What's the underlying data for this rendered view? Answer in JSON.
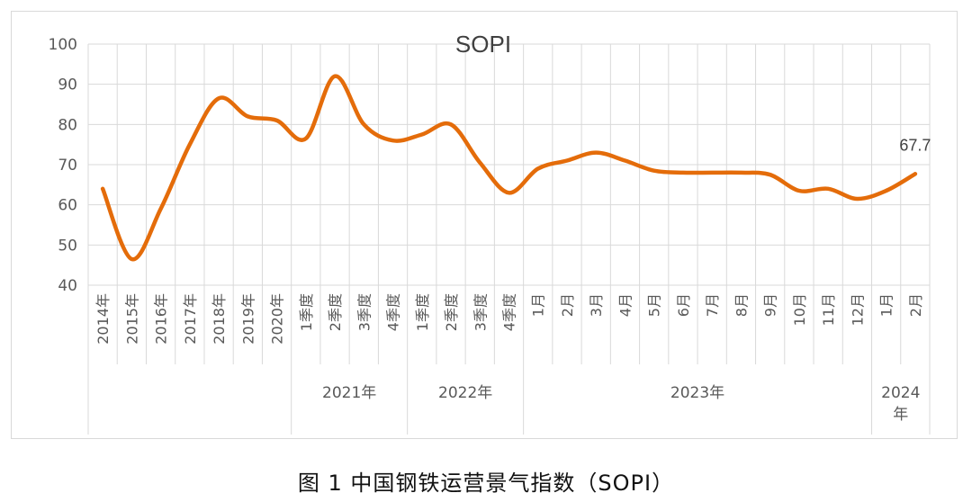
{
  "caption": "图 1   中国钢铁运营景气指数（SOPI）",
  "chart_data": {
    "type": "line",
    "title": "SOPI",
    "ylim": [
      40,
      100
    ],
    "yticks": [
      40,
      50,
      60,
      70,
      80,
      90,
      100
    ],
    "grid": true,
    "line_color": "#E46C0A",
    "categories": [
      "2014年",
      "2015年",
      "2016年",
      "2017年",
      "2018年",
      "2019年",
      "2020年",
      "1季度",
      "2季度",
      "3季度",
      "4季度",
      "1季度",
      "2季度",
      "3季度",
      "4季度",
      "1月",
      "2月",
      "3月",
      "4月",
      "5月",
      "6月",
      "7月",
      "8月",
      "9月",
      "10月",
      "11月",
      "12月",
      "1月",
      "2月"
    ],
    "groups": [
      {
        "label": "",
        "start": 0,
        "end": 6
      },
      {
        "label": "2021年",
        "start": 7,
        "end": 10
      },
      {
        "label": "2022年",
        "start": 11,
        "end": 14
      },
      {
        "label": "2023年",
        "start": 15,
        "end": 26
      },
      {
        "label": "2024\n年",
        "start": 27,
        "end": 28
      }
    ],
    "series": [
      {
        "values": [
          64,
          46.5,
          59,
          75,
          86.5,
          82,
          81,
          76.5,
          92,
          80,
          76,
          77.5,
          80,
          70.5,
          63,
          69,
          71,
          73,
          71,
          68.5,
          68,
          68,
          68,
          67.5,
          63.5,
          64,
          61.5,
          63.5,
          67.7
        ]
      }
    ],
    "annotations": [
      {
        "index": 28,
        "text": "67.7"
      }
    ]
  }
}
